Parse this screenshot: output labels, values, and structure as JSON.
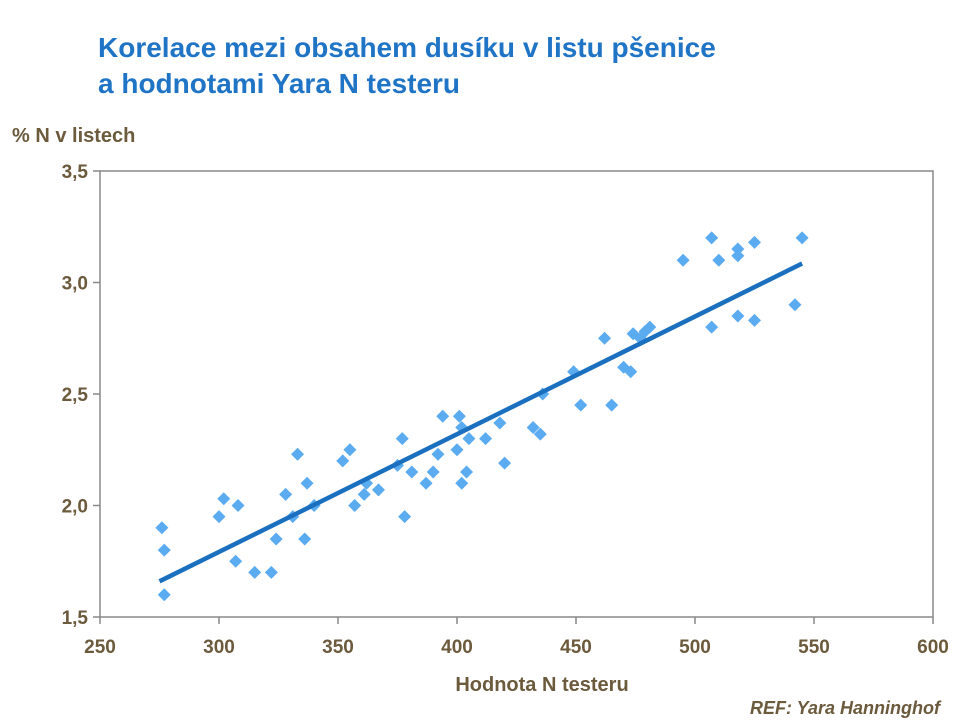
{
  "title": {
    "line1": "Korelace mezi obsahem dusíku v listu pšenice",
    "line2": "a hodnotami Yara N testeru"
  },
  "reference": "REF: Yara Hanninghof",
  "chart_data": {
    "type": "scatter",
    "xlabel": "Hodnota N testeru",
    "ylabel": "%  N v listech",
    "xlim": [
      250,
      600
    ],
    "ylim": [
      1.5,
      3.5
    ],
    "x_ticks": [
      250,
      300,
      350,
      400,
      450,
      500,
      550,
      600
    ],
    "y_ticks": [
      "1,5",
      "2,0",
      "2,5",
      "3,0",
      "3,5"
    ],
    "y_tick_values": [
      1.5,
      2.0,
      2.5,
      3.0,
      3.5
    ],
    "grid": false,
    "colors": {
      "points": "#5aabf0",
      "trendline": "#1a6fbe",
      "axis": "#888888"
    },
    "points": [
      [
        276,
        1.9
      ],
      [
        277,
        1.8
      ],
      [
        277,
        1.6
      ],
      [
        300,
        1.95
      ],
      [
        302,
        2.03
      ],
      [
        307,
        1.75
      ],
      [
        308,
        2.0
      ],
      [
        315,
        1.7
      ],
      [
        322,
        1.7
      ],
      [
        324,
        1.85
      ],
      [
        328,
        2.05
      ],
      [
        331,
        1.95
      ],
      [
        333,
        2.23
      ],
      [
        336,
        1.85
      ],
      [
        337,
        2.1
      ],
      [
        340,
        2.0
      ],
      [
        352,
        2.2
      ],
      [
        355,
        2.25
      ],
      [
        357,
        2.0
      ],
      [
        361,
        2.05
      ],
      [
        362,
        2.1
      ],
      [
        367,
        2.07
      ],
      [
        375,
        2.18
      ],
      [
        377,
        2.3
      ],
      [
        378,
        1.95
      ],
      [
        381,
        2.15
      ],
      [
        387,
        2.1
      ],
      [
        390,
        2.15
      ],
      [
        392,
        2.23
      ],
      [
        394,
        2.4
      ],
      [
        400,
        2.25
      ],
      [
        401,
        2.4
      ],
      [
        402,
        2.35
      ],
      [
        402,
        2.1
      ],
      [
        404,
        2.15
      ],
      [
        405,
        2.3
      ],
      [
        412,
        2.3
      ],
      [
        418,
        2.37
      ],
      [
        420,
        2.19
      ],
      [
        432,
        2.35
      ],
      [
        435,
        2.32
      ],
      [
        436,
        2.5
      ],
      [
        449,
        2.6
      ],
      [
        452,
        2.45
      ],
      [
        462,
        2.75
      ],
      [
        465,
        2.45
      ],
      [
        470,
        2.62
      ],
      [
        473,
        2.6
      ],
      [
        474,
        2.77
      ],
      [
        477,
        2.75
      ],
      [
        479,
        2.78
      ],
      [
        481,
        2.8
      ],
      [
        495,
        3.1
      ],
      [
        507,
        3.2
      ],
      [
        507,
        2.8
      ],
      [
        510,
        3.1
      ],
      [
        518,
        3.15
      ],
      [
        518,
        3.12
      ],
      [
        518,
        2.85
      ],
      [
        525,
        3.18
      ],
      [
        525,
        2.83
      ],
      [
        542,
        2.9
      ],
      [
        545,
        3.2
      ]
    ],
    "trendline": {
      "x": [
        275,
        545
      ],
      "y": [
        1.66,
        3.085
      ]
    }
  }
}
